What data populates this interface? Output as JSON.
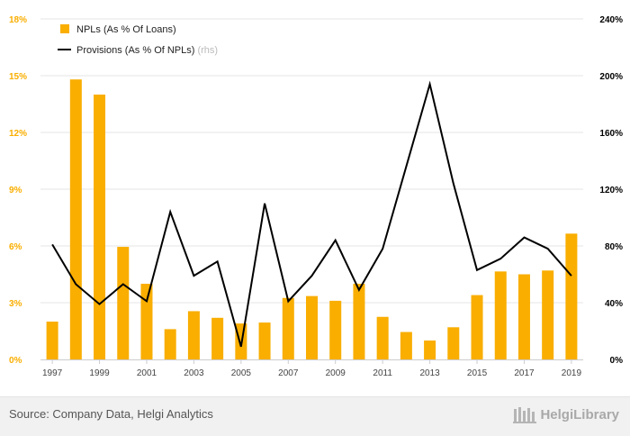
{
  "chart_data": {
    "type": "bar+line",
    "title": "",
    "categories": [
      "1997",
      "1998",
      "1999",
      "2000",
      "2001",
      "2002",
      "2003",
      "2004",
      "2005",
      "2006",
      "2007",
      "2008",
      "2009",
      "2010",
      "2011",
      "2012",
      "2013",
      "2014",
      "2015",
      "2016",
      "2017",
      "2018",
      "2019"
    ],
    "x_tick_labels": [
      "1997",
      "1999",
      "2001",
      "2003",
      "2005",
      "2007",
      "2009",
      "2011",
      "2013",
      "2015",
      "2017",
      "2019"
    ],
    "series": [
      {
        "name": "NPLs (As % Of Loans)",
        "type": "bar",
        "axis": "left",
        "color": "#f9ae00",
        "values": [
          2.0,
          14.8,
          14.0,
          5.95,
          4.0,
          1.6,
          2.55,
          2.2,
          1.9,
          1.95,
          3.25,
          3.35,
          3.1,
          4.0,
          2.25,
          1.45,
          1.0,
          1.7,
          3.4,
          4.65,
          4.5,
          4.7,
          6.65
        ]
      },
      {
        "name": "Provisions (As % Of NPLs)",
        "suffix": "(rhs)",
        "type": "line",
        "axis": "right",
        "color": "#000000",
        "values": [
          81,
          53,
          39,
          53,
          41,
          104,
          59,
          69,
          9,
          110,
          41,
          59,
          84,
          49,
          78,
          136,
          194,
          124,
          63,
          71,
          86,
          78,
          59
        ]
      }
    ],
    "y_left": {
      "min": 0,
      "max": 18,
      "ticks": [
        "0%",
        "3%",
        "6%",
        "9%",
        "12%",
        "15%",
        "18%"
      ]
    },
    "y_right": {
      "min": 0,
      "max": 240,
      "ticks": [
        "0%",
        "40%",
        "80%",
        "120%",
        "160%",
        "200%",
        "240%"
      ]
    },
    "grid": true,
    "legend_position": "top-left"
  },
  "footer": {
    "source": "Source: Company Data, Helgi Analytics",
    "brand": "HelgiLibrary"
  },
  "colors": {
    "left_axis": "#f9ae00",
    "right_axis": "#000000",
    "grid": "#e6e6e6"
  }
}
